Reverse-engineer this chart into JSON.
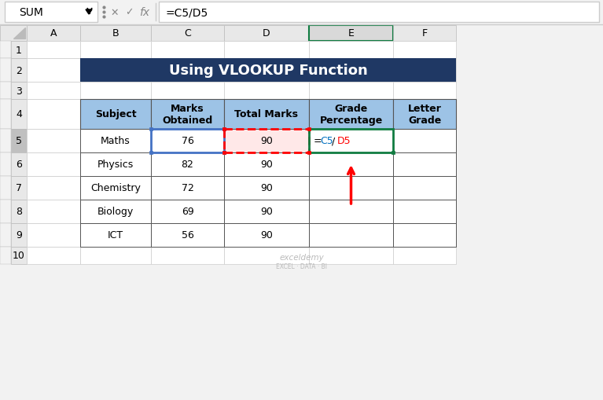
{
  "title": "Using VLOOKUP Function",
  "title_bg": "#1F3864",
  "title_color": "#FFFFFF",
  "formula_bar_name": "SUM",
  "formula_bar_formula": "=C5/D5",
  "col_headers": [
    "A",
    "B",
    "C",
    "D",
    "E",
    "F"
  ],
  "row_headers": [
    "1",
    "2",
    "3",
    "4",
    "5",
    "6",
    "7",
    "8",
    "9",
    "10"
  ],
  "table_headers": [
    "Subject",
    "Marks\nObtained",
    "Total Marks",
    "Grade\nPercentage",
    "Letter\nGrade"
  ],
  "table_data": [
    [
      "Maths",
      "76",
      "90",
      "=C5/D5",
      ""
    ],
    [
      "Physics",
      "82",
      "90",
      "",
      ""
    ],
    [
      "Chemistry",
      "72",
      "90",
      "",
      ""
    ],
    [
      "Biology",
      "69",
      "90",
      "",
      ""
    ],
    [
      "ICT",
      "56",
      "90",
      "",
      ""
    ]
  ],
  "header_bg": "#9DC3E6",
  "header_bg2": "#8EA9C1",
  "row_bg": "#FFFFFF",
  "grid_color": "#AAAAAA",
  "dark_grid_color": "#555555",
  "selected_col_header_bg": "#D9D9D9",
  "selected_col_header_border": "#107C41",
  "formula_text_c5_color": "#0070C0",
  "formula_text_d5_color": "#FF0000",
  "d5_highlight_border": "#FF0000",
  "d5_highlight_bg": "#FFE8E8",
  "e5_highlight_border": "#107C41",
  "blue_border_col": "#4472C4",
  "arrow_color": "#FF0000",
  "watermark_color": "#AAAAAA",
  "outer_bg": "#F2F2F2",
  "formula_bar_bg": "#FFFFFF",
  "col_header_bg": "#E8E8E8",
  "row_header_bg": "#E8E8E8",
  "row_header_selected_bg": "#C0C0C0",
  "corner_triangle_color": "#BBBBBB",
  "dots_color": "#888888"
}
